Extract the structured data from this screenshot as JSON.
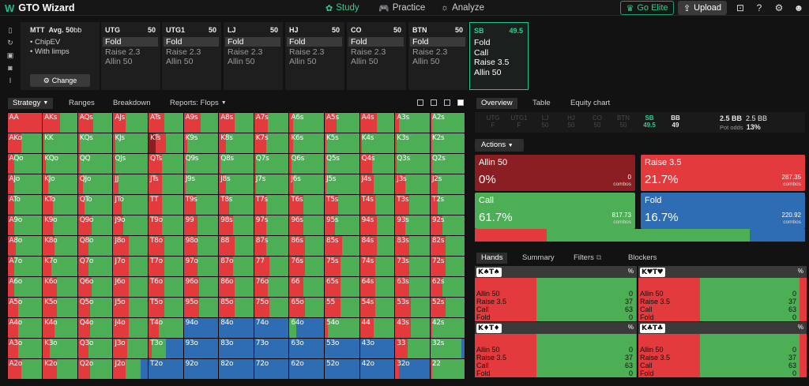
{
  "app": {
    "logo": "W",
    "title": "GTO Wizard"
  },
  "nav": [
    {
      "label": "Study",
      "icon": "✿",
      "active": true
    },
    {
      "label": "Practice",
      "icon": "🎮",
      "active": false
    },
    {
      "label": "Analyze",
      "icon": "☼",
      "active": false
    }
  ],
  "header": {
    "elite_label": "Go Elite",
    "upload_label": "Upload"
  },
  "config": {
    "format": "MTT",
    "depth": "Avg. 50",
    "depth_unit": "bb",
    "line1": "• ChipEV",
    "line2": "• With limps",
    "change_label": "Change"
  },
  "positions": [
    {
      "name": "UTG",
      "stack": "50",
      "actions": [
        "Fold",
        "Raise 2.3",
        "Allin 50"
      ],
      "selected": false
    },
    {
      "name": "UTG1",
      "stack": "50",
      "actions": [
        "Fold",
        "Raise 2.3",
        "Allin 50"
      ],
      "selected": false
    },
    {
      "name": "LJ",
      "stack": "50",
      "actions": [
        "Fold",
        "Raise 2.3",
        "Allin 50"
      ],
      "selected": false
    },
    {
      "name": "HJ",
      "stack": "50",
      "actions": [
        "Fold",
        "Raise 2.3",
        "Allin 50"
      ],
      "selected": false
    },
    {
      "name": "CO",
      "stack": "50",
      "actions": [
        "Fold",
        "Raise 2.3",
        "Allin 50"
      ],
      "selected": false
    },
    {
      "name": "BTN",
      "stack": "50",
      "actions": [
        "Fold",
        "Raise 2.3",
        "Allin 50"
      ],
      "selected": false
    },
    {
      "name": "SB",
      "stack": "49.5",
      "actions": [
        "Fold",
        "Call",
        "Raise 3.5",
        "Allin 50"
      ],
      "selected": true
    }
  ],
  "toolbar": {
    "strategy": "Strategy",
    "ranges": "Ranges",
    "breakdown": "Breakdown",
    "reports": "Reports: Flops"
  },
  "colors": {
    "raise": "#e23a3d",
    "call": "#4caf55",
    "fold": "#2e6db4",
    "allin": "#8b1e22",
    "accent": "#22c496"
  },
  "grid": {
    "ranks": [
      "A",
      "K",
      "Q",
      "J",
      "T",
      "9",
      "8",
      "7",
      "6",
      "5",
      "4",
      "3",
      "2"
    ],
    "mix": [
      [
        [
          0,
          1,
          0,
          0
        ],
        [
          0,
          0.5,
          0.5,
          0
        ],
        [
          0,
          0.45,
          0.55,
          0
        ],
        [
          0,
          0.35,
          0.65,
          0
        ],
        [
          0,
          0.45,
          0.55,
          0
        ],
        [
          0,
          0.5,
          0.5,
          0
        ],
        [
          0,
          0.45,
          0.55,
          0
        ],
        [
          0,
          0.4,
          0.6,
          0
        ],
        [
          0,
          0.1,
          0.9,
          0
        ],
        [
          0,
          0.35,
          0.65,
          0
        ],
        [
          0,
          0.5,
          0.5,
          0
        ],
        [
          0,
          0.1,
          0.9,
          0
        ],
        [
          0,
          0.05,
          0.95,
          0
        ]
      ],
      [
        [
          0,
          0.4,
          0.6,
          0
        ],
        [
          0,
          0.05,
          0.95,
          0
        ],
        [
          0,
          0.05,
          0.95,
          0
        ],
        [
          0,
          0.05,
          0.95,
          0
        ],
        [
          0.2,
          0.3,
          0.5,
          0
        ],
        [
          0,
          0.1,
          0.9,
          0
        ],
        [
          0,
          0.2,
          0.8,
          0
        ],
        [
          0,
          0.35,
          0.65,
          0
        ],
        [
          0,
          0.1,
          0.9,
          0
        ],
        [
          0,
          0.05,
          0.95,
          0
        ],
        [
          0,
          0.05,
          0.95,
          0
        ],
        [
          0,
          0.05,
          0.95,
          0
        ],
        [
          0,
          0.05,
          0.95,
          0
        ]
      ],
      [
        [
          0,
          0.2,
          0.8,
          0
        ],
        [
          0,
          0.1,
          0.9,
          0
        ],
        [
          0,
          0.05,
          0.95,
          0
        ],
        [
          0,
          0.05,
          0.95,
          0
        ],
        [
          0,
          0.4,
          0.6,
          0
        ],
        [
          0,
          0.05,
          0.95,
          0
        ],
        [
          0,
          0.05,
          0.95,
          0
        ],
        [
          0,
          0.05,
          0.95,
          0
        ],
        [
          0,
          0.05,
          0.95,
          0
        ],
        [
          0,
          0.05,
          0.95,
          0
        ],
        [
          0,
          0.35,
          0.65,
          0
        ],
        [
          0,
          0.05,
          0.95,
          0
        ],
        [
          0,
          0.05,
          0.95,
          0
        ]
      ],
      [
        [
          0,
          0.2,
          0.8,
          0
        ],
        [
          0,
          0.15,
          0.85,
          0
        ],
        [
          0,
          0.15,
          0.85,
          0
        ],
        [
          0,
          0.15,
          0.85,
          0
        ],
        [
          0,
          0.4,
          0.6,
          0
        ],
        [
          0,
          0.05,
          0.95,
          0
        ],
        [
          0,
          0.2,
          0.8,
          0
        ],
        [
          0,
          0.05,
          0.95,
          0
        ],
        [
          0,
          0.1,
          0.9,
          0
        ],
        [
          0,
          0.05,
          0.95,
          0
        ],
        [
          0,
          0.4,
          0.6,
          0
        ],
        [
          0,
          0.3,
          0.7,
          0
        ],
        [
          0,
          0.2,
          0.8,
          0
        ]
      ],
      [
        [
          0,
          0.2,
          0.8,
          0
        ],
        [
          0,
          0.3,
          0.7,
          0
        ],
        [
          0,
          0.2,
          0.8,
          0
        ],
        [
          0,
          0.25,
          0.75,
          0
        ],
        [
          0,
          0.4,
          0.6,
          0
        ],
        [
          0,
          0.35,
          0.65,
          0
        ],
        [
          0,
          0.3,
          0.7,
          0
        ],
        [
          0,
          0.35,
          0.65,
          0
        ],
        [
          0,
          0.4,
          0.6,
          0
        ],
        [
          0,
          0.4,
          0.6,
          0
        ],
        [
          0,
          0.45,
          0.55,
          0
        ],
        [
          0,
          0.4,
          0.6,
          0
        ],
        [
          0,
          0.2,
          0.8,
          0
        ]
      ],
      [
        [
          0,
          0.2,
          0.8,
          0
        ],
        [
          0,
          0.3,
          0.7,
          0
        ],
        [
          0,
          0.4,
          0.6,
          0
        ],
        [
          0,
          0.3,
          0.7,
          0
        ],
        [
          0,
          0.4,
          0.6,
          0
        ],
        [
          0,
          0.4,
          0.6,
          0
        ],
        [
          0,
          0.4,
          0.6,
          0
        ],
        [
          0,
          0.35,
          0.65,
          0
        ],
        [
          0,
          0.4,
          0.6,
          0
        ],
        [
          0,
          0.3,
          0.7,
          0
        ],
        [
          0,
          0.5,
          0.5,
          0
        ],
        [
          0,
          0.3,
          0.7,
          0
        ],
        [
          0,
          0.35,
          0.65,
          0
        ]
      ],
      [
        [
          0,
          0.25,
          0.75,
          0
        ],
        [
          0,
          0.35,
          0.65,
          0
        ],
        [
          0,
          0.3,
          0.7,
          0
        ],
        [
          0,
          0.45,
          0.55,
          0
        ],
        [
          0,
          0.45,
          0.55,
          0
        ],
        [
          0,
          0.4,
          0.6,
          0
        ],
        [
          0,
          0.45,
          0.55,
          0
        ],
        [
          0,
          0.35,
          0.65,
          0
        ],
        [
          0,
          0.45,
          0.55,
          0
        ],
        [
          0,
          0.5,
          0.5,
          0
        ],
        [
          0,
          0.5,
          0.5,
          0
        ],
        [
          0,
          0.4,
          0.6,
          0
        ],
        [
          0,
          0.45,
          0.55,
          0
        ]
      ],
      [
        [
          0,
          0.2,
          0.8,
          0
        ],
        [
          0,
          0.25,
          0.75,
          0
        ],
        [
          0,
          0.3,
          0.7,
          0
        ],
        [
          0,
          0.45,
          0.55,
          0
        ],
        [
          0,
          0.45,
          0.55,
          0
        ],
        [
          0,
          0.4,
          0.6,
          0
        ],
        [
          0,
          0.4,
          0.6,
          0
        ],
        [
          0,
          0.45,
          0.55,
          0
        ],
        [
          0,
          0.45,
          0.55,
          0
        ],
        [
          0,
          0.45,
          0.55,
          0
        ],
        [
          0,
          0.45,
          0.55,
          0
        ],
        [
          0,
          0.4,
          0.6,
          0
        ],
        [
          0,
          0.45,
          0.55,
          0
        ]
      ],
      [
        [
          0,
          0.2,
          0.8,
          0
        ],
        [
          0,
          0.4,
          0.6,
          0
        ],
        [
          0,
          0.4,
          0.6,
          0
        ],
        [
          0,
          0.45,
          0.55,
          0
        ],
        [
          0,
          0.45,
          0.55,
          0
        ],
        [
          0,
          0.45,
          0.55,
          0
        ],
        [
          0,
          0.45,
          0.55,
          0
        ],
        [
          0,
          0.4,
          0.6,
          0
        ],
        [
          0,
          0.4,
          0.6,
          0
        ],
        [
          0,
          0.45,
          0.55,
          0
        ],
        [
          0,
          0.45,
          0.55,
          0
        ],
        [
          0,
          0.4,
          0.6,
          0
        ],
        [
          0,
          0.35,
          0.65,
          0
        ]
      ],
      [
        [
          0,
          0.3,
          0.7,
          0
        ],
        [
          0,
          0.4,
          0.6,
          0
        ],
        [
          0,
          0.35,
          0.65,
          0
        ],
        [
          0,
          0.45,
          0.55,
          0
        ],
        [
          0,
          0.45,
          0.55,
          0
        ],
        [
          0,
          0.45,
          0.55,
          0
        ],
        [
          0,
          0.45,
          0.55,
          0
        ],
        [
          0,
          0.45,
          0.55,
          0
        ],
        [
          0,
          0.45,
          0.55,
          0
        ],
        [
          0,
          0.45,
          0.55,
          0
        ],
        [
          0,
          0.45,
          0.55,
          0
        ],
        [
          0,
          0.45,
          0.55,
          0
        ],
        [
          0,
          0.45,
          0.55,
          0
        ]
      ],
      [
        [
          0,
          0.3,
          0.7,
          0
        ],
        [
          0,
          0.35,
          0.65,
          0
        ],
        [
          0,
          0.35,
          0.65,
          0
        ],
        [
          0,
          0.45,
          0.55,
          0
        ],
        [
          0,
          0.3,
          0.7,
          0
        ],
        [
          0,
          0,
          0,
          1
        ],
        [
          0,
          0,
          0,
          1
        ],
        [
          0,
          0,
          0,
          1
        ],
        [
          0,
          0,
          0.2,
          0.8
        ],
        [
          0,
          0.1,
          0.9,
          0
        ],
        [
          0,
          0.4,
          0.6,
          0
        ],
        [
          0,
          0.45,
          0.55,
          0
        ],
        [
          0,
          0.05,
          0.95,
          0
        ]
      ],
      [
        [
          0,
          0.3,
          0.7,
          0
        ],
        [
          0,
          0.2,
          0.8,
          0
        ],
        [
          0,
          0.3,
          0.7,
          0
        ],
        [
          0,
          0.4,
          0.6,
          0
        ],
        [
          0,
          0.1,
          0.4,
          0.5
        ],
        [
          0,
          0,
          0,
          1
        ],
        [
          0,
          0,
          0,
          1
        ],
        [
          0,
          0,
          0,
          1
        ],
        [
          0,
          0,
          0,
          1
        ],
        [
          0,
          0,
          0,
          1
        ],
        [
          0,
          0,
          0,
          1
        ],
        [
          0,
          0.35,
          0.65,
          0
        ],
        [
          0,
          0,
          0.9,
          0.1
        ]
      ],
      [
        [
          0,
          0.4,
          0.6,
          0
        ],
        [
          0,
          0.4,
          0.6,
          0
        ],
        [
          0,
          0.35,
          0.65,
          0
        ],
        [
          0,
          0.35,
          0.45,
          0.2
        ],
        [
          0,
          0,
          0,
          1
        ],
        [
          0,
          0,
          0,
          1
        ],
        [
          0,
          0,
          0,
          1
        ],
        [
          0,
          0,
          0,
          1
        ],
        [
          0,
          0,
          0,
          1
        ],
        [
          0,
          0,
          0,
          1
        ],
        [
          0,
          0,
          0,
          1
        ],
        [
          0,
          0.1,
          0,
          0.9
        ],
        [
          0,
          0.05,
          0.95,
          0
        ]
      ]
    ]
  },
  "right": {
    "tabs": [
      "Overview",
      "Table",
      "Equity chart"
    ],
    "seq": [
      {
        "name": "UTG",
        "val": "F"
      },
      {
        "name": "UTG1",
        "val": "F"
      },
      {
        "name": "LJ",
        "val": "50"
      },
      {
        "name": "HJ",
        "val": "50"
      },
      {
        "name": "CO",
        "val": "50"
      },
      {
        "name": "BTN",
        "val": "50"
      },
      {
        "name": "SB",
        "val": "49.5"
      },
      {
        "name": "BB",
        "val": "49"
      }
    ],
    "pot": "2.5 BB",
    "pot_bb": "2.5 BB",
    "pot_odds_label": "Pot odds",
    "pot_odds": "13%",
    "actions_label": "Actions",
    "actions": [
      {
        "name": "Allin 50",
        "pct": "0%",
        "combos": "0",
        "combos_label": "combos",
        "color": "#8b1e22",
        "freq": 0
      },
      {
        "name": "Raise 3.5",
        "pct": "21.7%",
        "combos": "287.35",
        "combos_label": "combos",
        "color": "#e23a3d",
        "freq": 21.7
      },
      {
        "name": "Call",
        "pct": "61.7%",
        "combos": "817.73",
        "combos_label": "combos",
        "color": "#4caf55",
        "freq": 61.7
      },
      {
        "name": "Fold",
        "pct": "16.7%",
        "combos": "220.92",
        "combos_label": "combos",
        "color": "#2e6db4",
        "freq": 16.7
      }
    ],
    "hand_tabs": [
      "Hands",
      "Summary",
      "Filters",
      "Blockers"
    ],
    "hands": [
      {
        "hand": "K♠T♠",
        "pct_label": "%",
        "rows": [
          {
            "l": "Allin 50",
            "v": "0"
          },
          {
            "l": "Raise 3.5",
            "v": "37"
          },
          {
            "l": "Call",
            "v": "63"
          },
          {
            "l": "Fold",
            "v": "0"
          }
        ]
      },
      {
        "hand": "K♥T♥",
        "pct_label": "%",
        "rows": [
          {
            "l": "Allin 50",
            "v": "0"
          },
          {
            "l": "Raise 3.5",
            "v": "37"
          },
          {
            "l": "Call",
            "v": "63"
          },
          {
            "l": "Fold",
            "v": "0"
          }
        ]
      },
      {
        "hand": "K♦T♦",
        "pct_label": "%",
        "rows": [
          {
            "l": "Allin 50",
            "v": "0"
          },
          {
            "l": "Raise 3.5",
            "v": "37"
          },
          {
            "l": "Call",
            "v": "63"
          },
          {
            "l": "Fold",
            "v": "0"
          }
        ]
      },
      {
        "hand": "K♣T♣",
        "pct_label": "%",
        "rows": [
          {
            "l": "Allin 50",
            "v": "0"
          },
          {
            "l": "Raise 3.5",
            "v": "37"
          },
          {
            "l": "Call",
            "v": "63"
          },
          {
            "l": "Fold",
            "v": "0"
          }
        ]
      }
    ]
  }
}
